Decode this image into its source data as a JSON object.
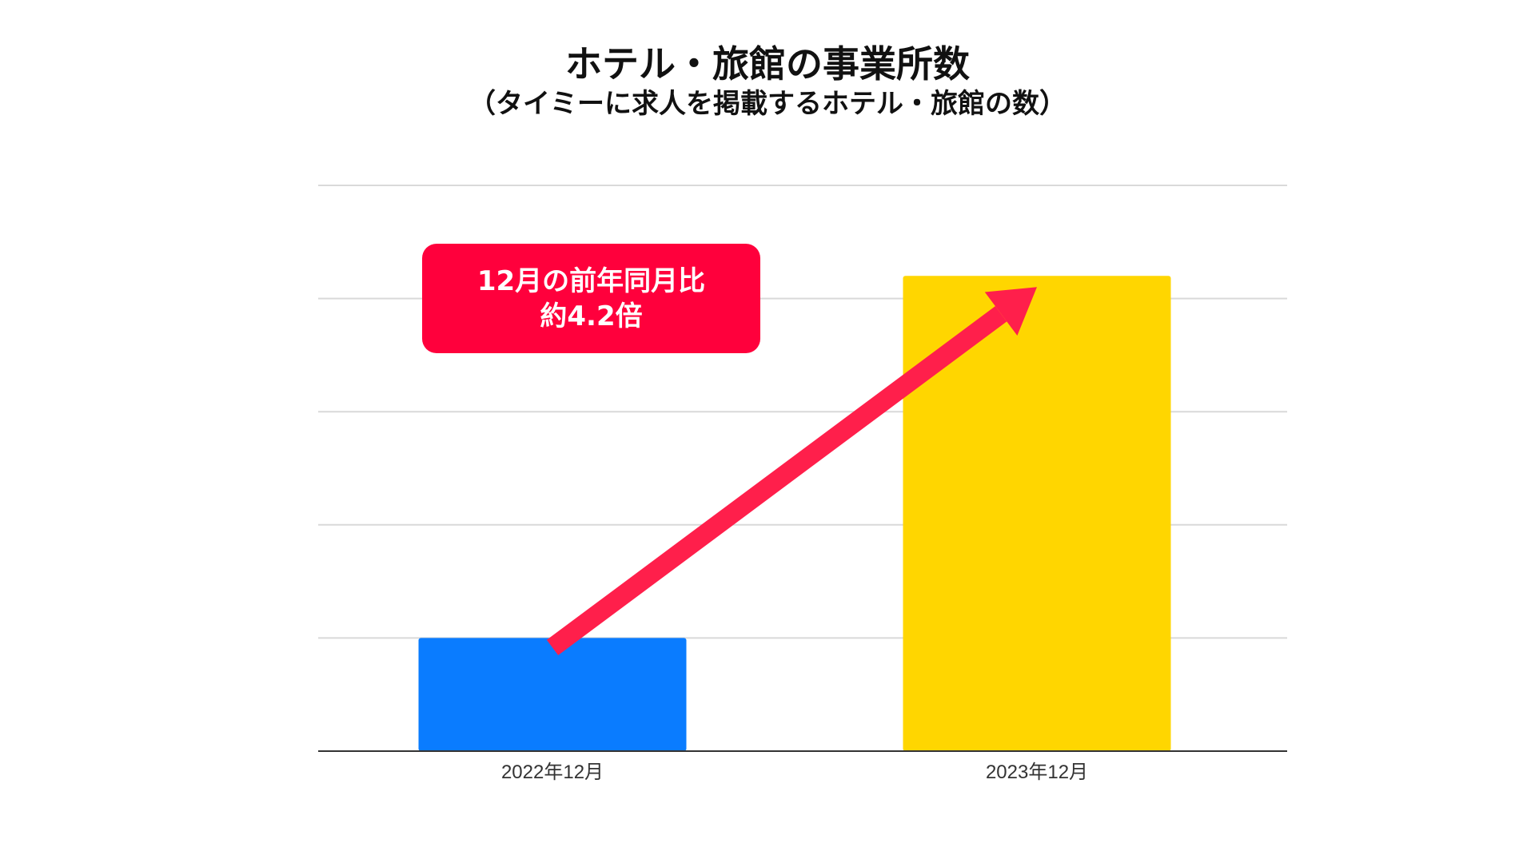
{
  "title": "ホテル・旅館の事業所数",
  "subtitle": "（タイミーに求人を掲載するホテル・旅館の数）",
  "callout": {
    "line1": "12月の前年同月比",
    "line2": "約4.2倍"
  },
  "colors": {
    "bar_2022": "#0a7cff",
    "bar_2023": "#ffd600",
    "arrow": "#ff1f4b",
    "callout_bg": "#ff003c",
    "grid": "#d9d9d9",
    "baseline": "#333333"
  },
  "chart_data": {
    "type": "bar",
    "categories": [
      "2022年12月",
      "2023年12月"
    ],
    "values": [
      1,
      4.2
    ],
    "ylim": [
      0,
      5
    ],
    "grid": true,
    "gridlines": 5,
    "legend": "none",
    "annotation": "12月の前年同月比 約4.2倍"
  }
}
